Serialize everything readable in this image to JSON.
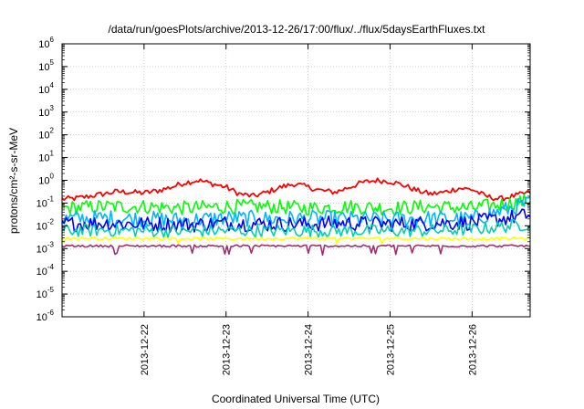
{
  "chart_data": {
    "type": "line",
    "title": "/data/run/goesPlots/archive/2013-12-26/17:00/flux/../flux/5daysEarthFluxes.txt",
    "xlabel": "Coordinated Universal Time (UTC)",
    "ylabel": "protons/cm²-s-sr-MeV",
    "yscale": "log",
    "ylim": [
      1e-06,
      1000000.0
    ],
    "xlim": [
      "2013-12-21 00:00",
      "2013-12-26 17:00"
    ],
    "grid": true,
    "legend": "none",
    "x_ticks": [
      "2013-12-22",
      "2013-12-23",
      "2013-12-24",
      "2013-12-25",
      "2013-12-26"
    ],
    "y_ticks": [
      {
        "value": 1e-06,
        "base": "10",
        "exp": "-6"
      },
      {
        "value": 1e-05,
        "base": "10",
        "exp": "-5"
      },
      {
        "value": 0.0001,
        "base": "10",
        "exp": "-4"
      },
      {
        "value": 0.001,
        "base": "10",
        "exp": "-3"
      },
      {
        "value": 0.01,
        "base": "10",
        "exp": "-2"
      },
      {
        "value": 0.1,
        "base": "10",
        "exp": "-1"
      },
      {
        "value": 1,
        "base": "10",
        "exp": "0"
      },
      {
        "value": 10,
        "base": "10",
        "exp": "1"
      },
      {
        "value": 100,
        "base": "10",
        "exp": "2"
      },
      {
        "value": 1000,
        "base": "10",
        "exp": "3"
      },
      {
        "value": 10000,
        "base": "10",
        "exp": "4"
      },
      {
        "value": 100000,
        "base": "10",
        "exp": "5"
      },
      {
        "value": 1000000,
        "base": "10",
        "exp": "6"
      }
    ],
    "series": [
      {
        "color": "#ff0000",
        "x": [
          "2013-12-21 00:00",
          "2013-12-21 04:00",
          "2013-12-21 08:00",
          "2013-12-21 12:00",
          "2013-12-21 16:00",
          "2013-12-21 20:00",
          "2013-12-22 00:00",
          "2013-12-22 04:00",
          "2013-12-22 08:00",
          "2013-12-22 12:00",
          "2013-12-22 16:00",
          "2013-12-22 20:00",
          "2013-12-23 00:00",
          "2013-12-23 04:00",
          "2013-12-23 08:00",
          "2013-12-23 12:00",
          "2013-12-23 16:00",
          "2013-12-23 20:00",
          "2013-12-24 00:00",
          "2013-12-24 04:00",
          "2013-12-24 08:00",
          "2013-12-24 12:00",
          "2013-12-24 16:00",
          "2013-12-24 20:00",
          "2013-12-25 00:00",
          "2013-12-25 04:00",
          "2013-12-25 08:00",
          "2013-12-25 12:00",
          "2013-12-25 16:00",
          "2013-12-25 20:00",
          "2013-12-26 00:00",
          "2013-12-26 04:00",
          "2013-12-26 08:00",
          "2013-12-26 12:00",
          "2013-12-26 17:00"
        ],
        "y": [
          0.15,
          0.16,
          0.2,
          0.25,
          0.32,
          0.3,
          0.28,
          0.35,
          0.5,
          0.8,
          1.0,
          0.7,
          0.5,
          0.25,
          0.2,
          0.3,
          0.5,
          0.7,
          0.5,
          0.35,
          0.3,
          0.5,
          0.8,
          1.0,
          0.9,
          0.6,
          0.35,
          0.25,
          0.3,
          0.45,
          0.4,
          0.2,
          0.15,
          0.2,
          0.3
        ]
      },
      {
        "color": "#00ff00",
        "x": [
          "2013-12-21 00:00",
          "2013-12-21 12:00",
          "2013-12-22 00:00",
          "2013-12-22 12:00",
          "2013-12-23 00:00",
          "2013-12-23 12:00",
          "2013-12-24 00:00",
          "2013-12-24 12:00",
          "2013-12-25 00:00",
          "2013-12-25 12:00",
          "2013-12-26 00:00",
          "2013-12-26 17:00"
        ],
        "y": [
          0.06,
          0.07,
          0.07,
          0.06,
          0.07,
          0.07,
          0.06,
          0.07,
          0.06,
          0.07,
          0.06,
          0.13
        ]
      },
      {
        "color": "#00b4ff",
        "x": [
          "2013-12-21 00:00",
          "2013-12-21 12:00",
          "2013-12-22 00:00",
          "2013-12-22 12:00",
          "2013-12-23 00:00",
          "2013-12-23 12:00",
          "2013-12-24 00:00",
          "2013-12-24 12:00",
          "2013-12-25 00:00",
          "2013-12-25 12:00",
          "2013-12-26 00:00",
          "2013-12-26 17:00"
        ],
        "y": [
          0.02,
          0.022,
          0.02,
          0.018,
          0.022,
          0.02,
          0.021,
          0.02,
          0.019,
          0.021,
          0.02,
          0.1
        ]
      },
      {
        "color": "#0000ff",
        "x": [
          "2013-12-21 00:00",
          "2013-12-21 12:00",
          "2013-12-22 00:00",
          "2013-12-22 12:00",
          "2013-12-23 00:00",
          "2013-12-23 12:00",
          "2013-12-24 00:00",
          "2013-12-24 12:00",
          "2013-12-25 00:00",
          "2013-12-25 12:00",
          "2013-12-26 00:00",
          "2013-12-26 17:00"
        ],
        "y": [
          0.012,
          0.013,
          0.012,
          0.011,
          0.013,
          0.012,
          0.012,
          0.013,
          0.012,
          0.013,
          0.014,
          0.03
        ]
      },
      {
        "color": "#00d0b0",
        "x": [
          "2013-12-21 00:00",
          "2013-12-21 12:00",
          "2013-12-22 00:00",
          "2013-12-22 12:00",
          "2013-12-23 00:00",
          "2013-12-23 12:00",
          "2013-12-24 00:00",
          "2013-12-24 12:00",
          "2013-12-25 00:00",
          "2013-12-25 12:00",
          "2013-12-26 00:00",
          "2013-12-26 17:00"
        ],
        "y": [
          0.006,
          0.0065,
          0.006,
          0.0058,
          0.0062,
          0.006,
          0.0061,
          0.006,
          0.0059,
          0.0061,
          0.007,
          0.012
        ]
      },
      {
        "color": "#ffff00",
        "x": [
          "2013-12-21 00:00",
          "2013-12-22 00:00",
          "2013-12-23 00:00",
          "2013-12-24 00:00",
          "2013-12-25 00:00",
          "2013-12-26 00:00",
          "2013-12-26 17:00"
        ],
        "y": [
          0.0028,
          0.0028,
          0.0027,
          0.0028,
          0.0028,
          0.0027,
          0.0028
        ]
      },
      {
        "color": "#a0306e",
        "x": [
          "2013-12-21 00:00",
          "2013-12-22 00:00",
          "2013-12-23 00:00",
          "2013-12-24 00:00",
          "2013-12-25 00:00",
          "2013-12-26 00:00",
          "2013-12-26 17:00"
        ],
        "y": [
          0.0013,
          0.0013,
          0.0013,
          0.0013,
          0.0013,
          0.0013,
          0.0013
        ]
      }
    ]
  }
}
